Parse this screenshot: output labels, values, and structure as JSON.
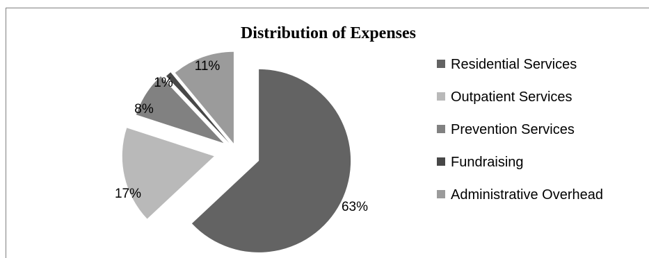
{
  "chart_data": {
    "type": "pie",
    "title": "Distribution of Expenses",
    "legend_position": "right",
    "categories": [
      "Residential Services",
      "Outpatient Services",
      "Prevention Services",
      "Fundraising",
      "Administrative Overhead"
    ],
    "values": [
      63,
      17,
      8,
      1,
      11
    ],
    "data_labels": [
      "63%",
      "17%",
      "8%",
      "1%",
      "11%"
    ],
    "colors": [
      "#636363",
      "#b9b9b9",
      "#818181",
      "#474747",
      "#9b9b9b"
    ],
    "exploded": true
  }
}
